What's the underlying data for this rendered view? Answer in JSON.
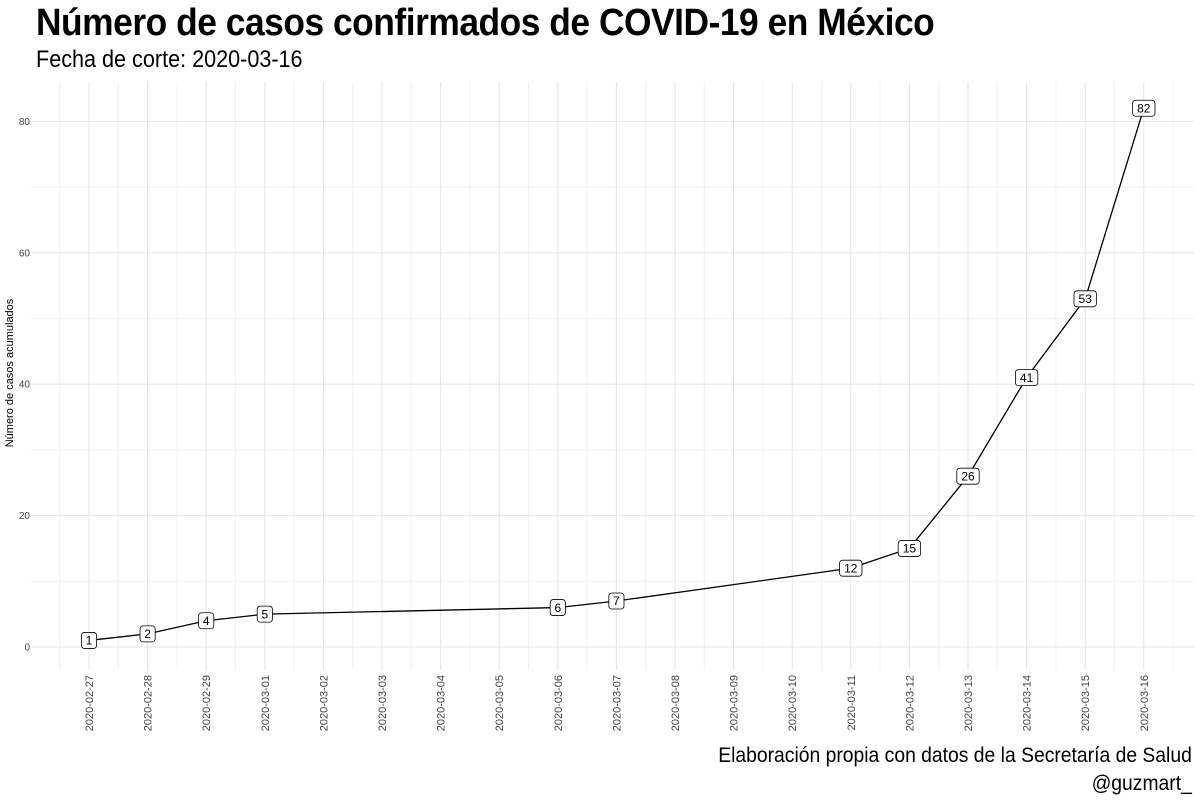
{
  "chart_data": {
    "type": "line",
    "title": "Número de casos confirmados de COVID-19 en México",
    "subtitle": "Fecha de corte: 2020-03-16",
    "xlabel": "",
    "ylabel": "Número de casos acumulados",
    "caption": [
      "Elaboración propia con datos de la Secretaría de Salud",
      "@guzmart_"
    ],
    "x_ticks": [
      "2020-02-27",
      "2020-02-28",
      "2020-02-29",
      "2020-03-01",
      "2020-03-02",
      "2020-03-03",
      "2020-03-04",
      "2020-03-05",
      "2020-03-06",
      "2020-03-07",
      "2020-03-08",
      "2020-03-09",
      "2020-03-10",
      "2020-03-11",
      "2020-03-12",
      "2020-03-13",
      "2020-03-14",
      "2020-03-15",
      "2020-03-16"
    ],
    "y_ticks": [
      0,
      20,
      40,
      60,
      80
    ],
    "ylim": [
      -3.5,
      86
    ],
    "grid": true,
    "legend": "none",
    "series": [
      {
        "points": [
          {
            "x": "2020-02-27",
            "y": 1
          },
          {
            "x": "2020-02-28",
            "y": 2
          },
          {
            "x": "2020-02-29",
            "y": 4
          },
          {
            "x": "2020-03-01",
            "y": 5
          },
          {
            "x": "2020-03-06",
            "y": 6
          },
          {
            "x": "2020-03-07",
            "y": 7
          },
          {
            "x": "2020-03-11",
            "y": 12
          },
          {
            "x": "2020-03-12",
            "y": 15
          },
          {
            "x": "2020-03-13",
            "y": 26
          },
          {
            "x": "2020-03-14",
            "y": 41
          },
          {
            "x": "2020-03-15",
            "y": 53
          },
          {
            "x": "2020-03-16",
            "y": 82
          }
        ]
      }
    ]
  }
}
